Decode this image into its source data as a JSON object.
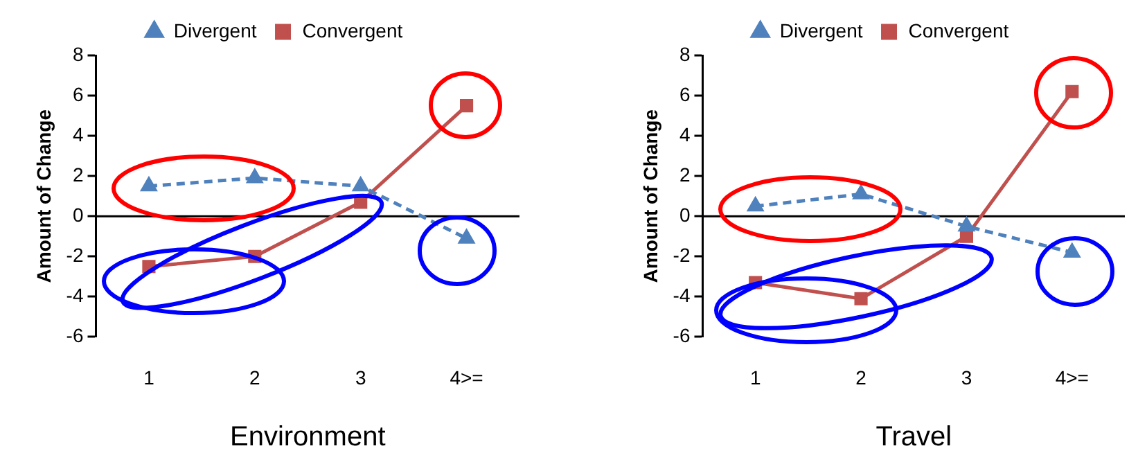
{
  "chart_data": [
    {
      "type": "line",
      "xlabel": "Environment",
      "ylabel": "Amount of Change",
      "categories": [
        "1",
        "2",
        "3",
        "4>="
      ],
      "ylim": [
        -6,
        8
      ],
      "yticks": [
        -6,
        -4,
        -2,
        0,
        2,
        4,
        6,
        8
      ],
      "legend": "top",
      "grid": false,
      "ref_lines": [
        {
          "axis": "y",
          "value": 0,
          "color": "#000000"
        }
      ],
      "series": [
        {
          "name": "Divergent",
          "color": "#4f81bd",
          "marker": "triangle",
          "line_style": "dashed",
          "values": [
            1.5,
            1.9,
            1.5,
            -1.1
          ]
        },
        {
          "name": "Convergent",
          "color": "#c0504d",
          "marker": "square",
          "line_style": "solid",
          "values": [
            -2.5,
            -2.0,
            0.7,
            5.5
          ]
        }
      ]
    },
    {
      "type": "line",
      "xlabel": "Travel",
      "ylabel": "Amount of Change",
      "categories": [
        "1",
        "2",
        "3",
        "4>="
      ],
      "ylim": [
        -6,
        8
      ],
      "yticks": [
        -6,
        -4,
        -2,
        0,
        2,
        4,
        6,
        8
      ],
      "legend": "top",
      "grid": false,
      "ref_lines": [
        {
          "axis": "y",
          "value": 0,
          "color": "#000000"
        }
      ],
      "series": [
        {
          "name": "Divergent",
          "color": "#4f81bd",
          "marker": "triangle",
          "line_style": "dashed",
          "values": [
            0.5,
            1.1,
            -0.5,
            -1.8
          ]
        },
        {
          "name": "Convergent",
          "color": "#c0504d",
          "marker": "square",
          "line_style": "solid",
          "values": [
            -3.3,
            -4.1,
            -1.0,
            6.2
          ]
        }
      ]
    }
  ]
}
